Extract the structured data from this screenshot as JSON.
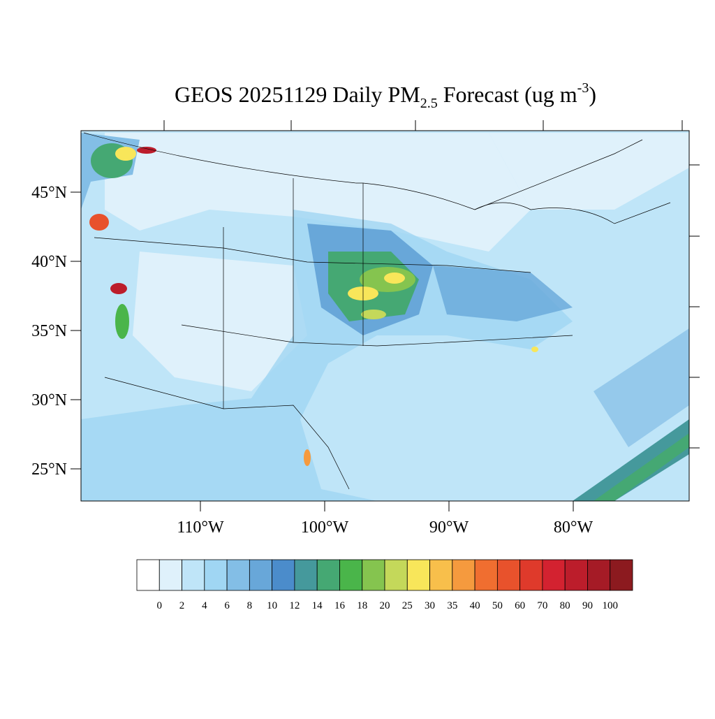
{
  "header": {
    "title_main": "GEOS 20251129 Daily PM",
    "title_sub": "2.5",
    "title_rest": " Forecast (ug m",
    "title_sup": "-3",
    "title_end": ")"
  },
  "map": {
    "lat_ticks": [
      {
        "value": 45,
        "label": "45°N"
      },
      {
        "value": 40,
        "label": "40°N"
      },
      {
        "value": 35,
        "label": "35°N"
      },
      {
        "value": 30,
        "label": "30°N"
      },
      {
        "value": 25,
        "label": "25°N"
      }
    ],
    "lon_ticks": [
      {
        "value": -110,
        "label": "110°W"
      },
      {
        "value": -100,
        "label": "100°W"
      },
      {
        "value": -90,
        "label": "90°W"
      },
      {
        "value": -80,
        "label": "80°W"
      }
    ]
  },
  "colorbar": {
    "labels": [
      0,
      2,
      4,
      6,
      8,
      10,
      12,
      14,
      16,
      18,
      20,
      25,
      30,
      35,
      40,
      50,
      60,
      70,
      80,
      90,
      100
    ],
    "colors": [
      "#ffffff",
      "#dff1fb",
      "#bfe5f8",
      "#a0d6f3",
      "#83bee6",
      "#68a7d9",
      "#4b8ccb",
      "#45999c",
      "#45a873",
      "#4ab54a",
      "#85c44f",
      "#c4d85a",
      "#f8e65a",
      "#f8bf4b",
      "#f59a3e",
      "#f06e30",
      "#e8522c",
      "#df3a2b",
      "#d32230",
      "#bc1d2b",
      "#a51b26",
      "#8c1a1f"
    ]
  }
}
